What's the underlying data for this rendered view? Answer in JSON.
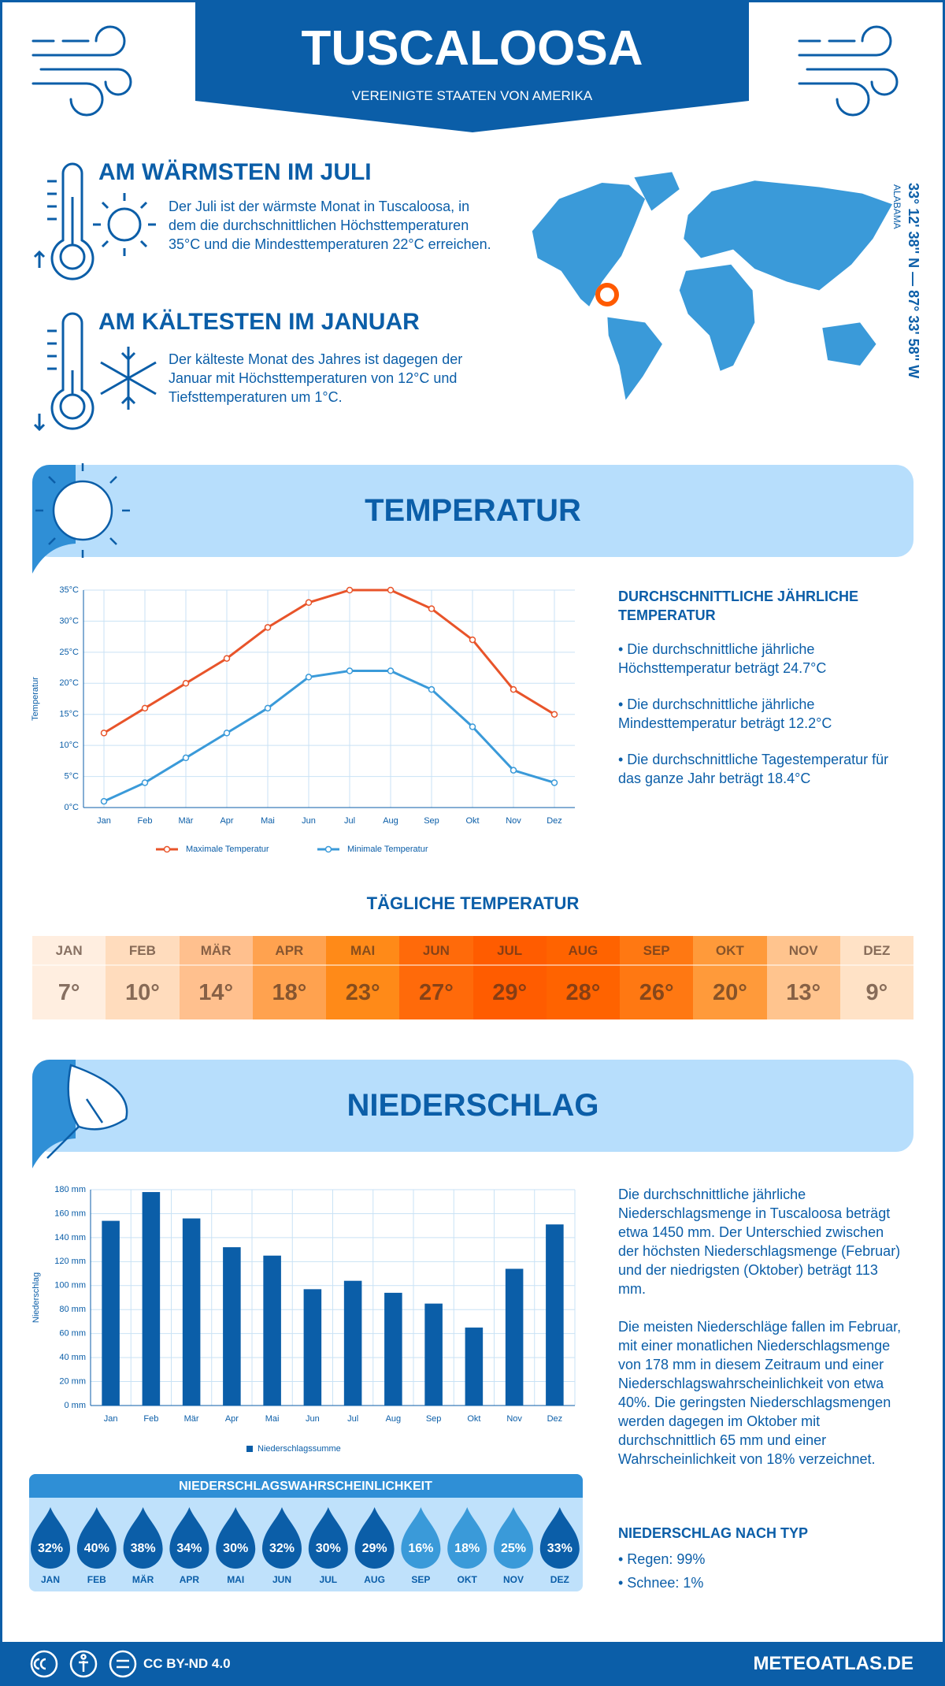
{
  "header": {
    "title": "TUSCALOOSA",
    "subtitle": "VEREINIGTE STAATEN VON AMERIKA"
  },
  "warmest": {
    "title": "AM WÄRMSTEN IM JULI",
    "text": "Der Juli ist der wärmste Monat in Tuscaloosa, in dem die durchschnittlichen Höchsttemperaturen 35°C und die Mindesttemperaturen 22°C erreichen."
  },
  "coldest": {
    "title": "AM KÄLTESTEN IM JANUAR",
    "text": "Der kälteste Monat des Jahres ist dagegen der Januar mit Höchsttemperaturen von 12°C und Tiefsttemperaturen um 1°C."
  },
  "location": {
    "coordinates": "33° 12' 38'' N — 87° 33' 58'' W",
    "region": "ALABAMA"
  },
  "temperature_section": {
    "title": "TEMPERATUR",
    "summary_title": "DURCHSCHNITTLICHE JÄHRLICHE TEMPERATUR",
    "bullets": [
      "• Die durchschnittliche jährliche Höchsttemperatur beträgt 24.7°C",
      "• Die durchschnittliche jährliche Mindesttemperatur beträgt 12.2°C",
      "• Die durchschnittliche Tagestemperatur für das ganze Jahr beträgt 18.4°C"
    ]
  },
  "chart_data": [
    {
      "type": "line",
      "y_label": "Temperatur",
      "categories": [
        "Jan",
        "Feb",
        "Mär",
        "Apr",
        "Mai",
        "Jun",
        "Jul",
        "Aug",
        "Sep",
        "Okt",
        "Nov",
        "Dez"
      ],
      "series": [
        {
          "name": "Maximale Temperatur",
          "color": "#e8542a",
          "values": [
            12,
            16,
            20,
            24,
            29,
            33,
            35,
            35,
            32,
            27,
            19,
            15
          ]
        },
        {
          "name": "Minimale Temperatur",
          "color": "#3a9ad9",
          "values": [
            1,
            4,
            8,
            12,
            16,
            21,
            22,
            22,
            19,
            13,
            6,
            4
          ]
        }
      ],
      "ylim": [
        0,
        35
      ],
      "yticks": [
        {
          "value": 0,
          "label": "0°C"
        },
        {
          "value": 5,
          "label": "5°C"
        },
        {
          "value": 10,
          "label": "10°C"
        },
        {
          "value": 15,
          "label": "15°C"
        },
        {
          "value": 20,
          "label": "20°C"
        },
        {
          "value": 25,
          "label": "25°C"
        },
        {
          "value": 30,
          "label": "30°C"
        },
        {
          "value": 35,
          "label": "35°C"
        }
      ],
      "grid": true,
      "legend": "bottom"
    },
    {
      "type": "bar",
      "y_label": "Niederschlag",
      "categories": [
        "Jan",
        "Feb",
        "Mär",
        "Apr",
        "Mai",
        "Jun",
        "Jul",
        "Aug",
        "Sep",
        "Okt",
        "Nov",
        "Dez"
      ],
      "series": [
        {
          "name": "Niederschlagssumme",
          "color": "#0b5ea8",
          "values": [
            154,
            178,
            156,
            132,
            125,
            97,
            104,
            94,
            85,
            65,
            114,
            151
          ]
        }
      ],
      "ylim": [
        0,
        180
      ],
      "yticks": [
        {
          "value": 0,
          "label": "0 mm"
        },
        {
          "value": 20,
          "label": "20 mm"
        },
        {
          "value": 40,
          "label": "40 mm"
        },
        {
          "value": 60,
          "label": "60 mm"
        },
        {
          "value": 80,
          "label": "80 mm"
        },
        {
          "value": 100,
          "label": "100 mm"
        },
        {
          "value": 120,
          "label": "120 mm"
        },
        {
          "value": 140,
          "label": "140 mm"
        },
        {
          "value": 160,
          "label": "160 mm"
        },
        {
          "value": 180,
          "label": "180 mm"
        }
      ],
      "grid": true,
      "legend": "bottom"
    }
  ],
  "daily_temperature": {
    "title": "TÄGLICHE TEMPERATUR",
    "months": [
      "JAN",
      "FEB",
      "MÄR",
      "APR",
      "MAI",
      "JUN",
      "JUL",
      "AUG",
      "SEP",
      "OKT",
      "NOV",
      "DEZ"
    ],
    "values": [
      "7°",
      "10°",
      "14°",
      "18°",
      "23°",
      "27°",
      "29°",
      "28°",
      "26°",
      "20°",
      "13°",
      "9°"
    ],
    "colors": [
      "#ffeee0",
      "#ffdcbd",
      "#ffc08e",
      "#ffa24f",
      "#ff8a18",
      "#ff6a0a",
      "#ff5c00",
      "#ff6300",
      "#ff7812",
      "#ff9a3a",
      "#ffc48e",
      "#ffe2c6"
    ]
  },
  "precipitation_section": {
    "title": "NIEDERSCHLAG",
    "paragraphs": [
      "Die durchschnittliche jährliche Niederschlagsmenge in Tuscaloosa beträgt etwa 1450 mm. Der Unterschied zwischen der höchsten Niederschlagsmenge (Februar) und der niedrigsten (Oktober) beträgt 113 mm.",
      "Die meisten Niederschläge fallen im Februar, mit einer monatlichen Niederschlagsmenge von 178 mm in diesem Zeitraum und einer Niederschlagswahrscheinlichkeit von etwa 40%. Die geringsten Niederschlagsmengen werden dagegen im Oktober mit durchschnittlich 65 mm und einer Wahrscheinlichkeit von 18% verzeichnet."
    ],
    "type_title": "NIEDERSCHLAG NACH TYP",
    "types": [
      "• Regen: 99%",
      "• Schnee: 1%"
    ]
  },
  "precipitation_probability": {
    "title": "NIEDERSCHLAGSWAHRSCHEINLICHKEIT",
    "months": [
      "JAN",
      "FEB",
      "MÄR",
      "APR",
      "MAI",
      "JUN",
      "JUL",
      "AUG",
      "SEP",
      "OKT",
      "NOV",
      "DEZ"
    ],
    "values": [
      "32%",
      "40%",
      "38%",
      "34%",
      "30%",
      "32%",
      "30%",
      "29%",
      "16%",
      "18%",
      "25%",
      "33%"
    ],
    "colors": [
      "#0b5ea8",
      "#0b5ea8",
      "#0b5ea8",
      "#0b5ea8",
      "#0b5ea8",
      "#0b5ea8",
      "#0b5ea8",
      "#0b5ea8",
      "#3a9ad9",
      "#3a9ad9",
      "#3a9ad9",
      "#0b5ea8"
    ]
  },
  "footer": {
    "license": "CC BY-ND 4.0",
    "site": "METEOATLAS.DE"
  }
}
